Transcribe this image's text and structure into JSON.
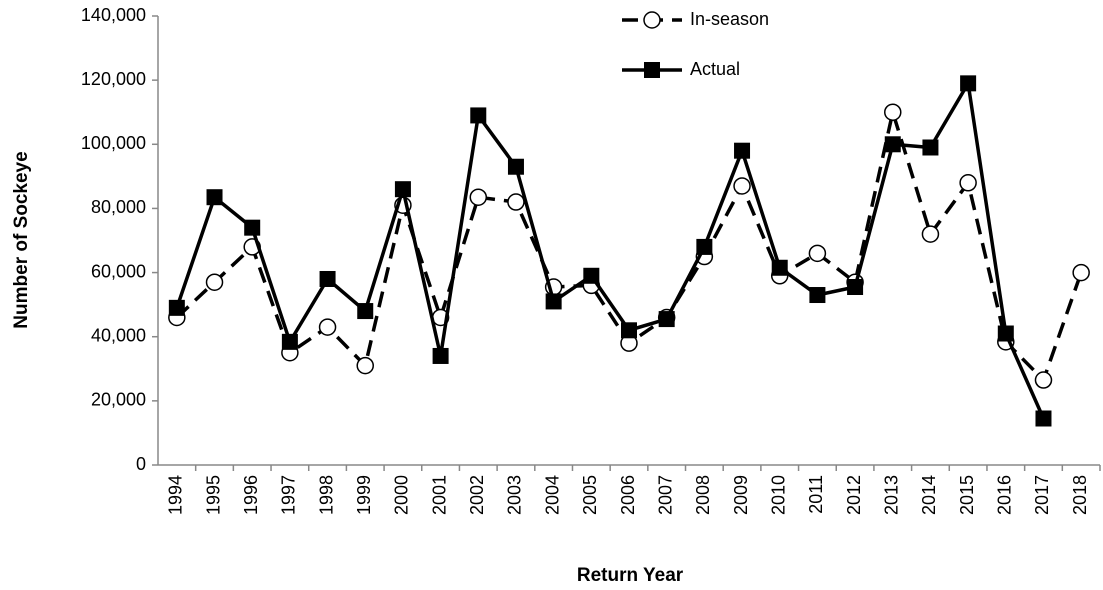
{
  "chart_data": {
    "type": "line",
    "xlabel": "Return Year",
    "ylabel": "Number of Sockeye",
    "categories": [
      "1994",
      "1995",
      "1996",
      "1997",
      "1998",
      "1999",
      "2000",
      "2001",
      "2002",
      "2003",
      "2004",
      "2005",
      "2006",
      "2007",
      "2008",
      "2009",
      "2010",
      "2011",
      "2012",
      "2013",
      "2014",
      "2015",
      "2016",
      "2017",
      "2018"
    ],
    "series": [
      {
        "name": "In-season",
        "color": "#000000",
        "style": "dashed",
        "marker": "circle",
        "values": [
          46000,
          57000,
          68000,
          35000,
          43000,
          31000,
          81000,
          46000,
          83500,
          82000,
          55500,
          56000,
          38000,
          46000,
          65000,
          87000,
          59000,
          66000,
          57000,
          110000,
          72000,
          88000,
          38400,
          26500,
          60000
        ]
      },
      {
        "name": "Actual",
        "color": "#000000",
        "style": "solid",
        "marker": "square",
        "values": [
          49000,
          83500,
          74000,
          38400,
          58000,
          48000,
          86000,
          34000,
          109000,
          93000,
          51000,
          59000,
          42000,
          45500,
          68000,
          98000,
          61500,
          53000,
          55500,
          100000,
          99000,
          119000,
          41000,
          14500,
          null
        ]
      }
    ],
    "ylim": [
      0,
      140000
    ],
    "yticks": [
      0,
      {
        "value": 20000,
        "label": "20,000"
      },
      {
        "value": 40000,
        "label": "40,000"
      },
      {
        "value": 60000,
        "label": "60,000"
      },
      {
        "value": 80000,
        "label": "80,000"
      },
      {
        "value": 100000,
        "label": "100,000"
      },
      {
        "value": 120000,
        "label": "120,000"
      },
      {
        "value": 140000,
        "label": "140,000"
      }
    ],
    "grid": false,
    "legend": "top"
  }
}
